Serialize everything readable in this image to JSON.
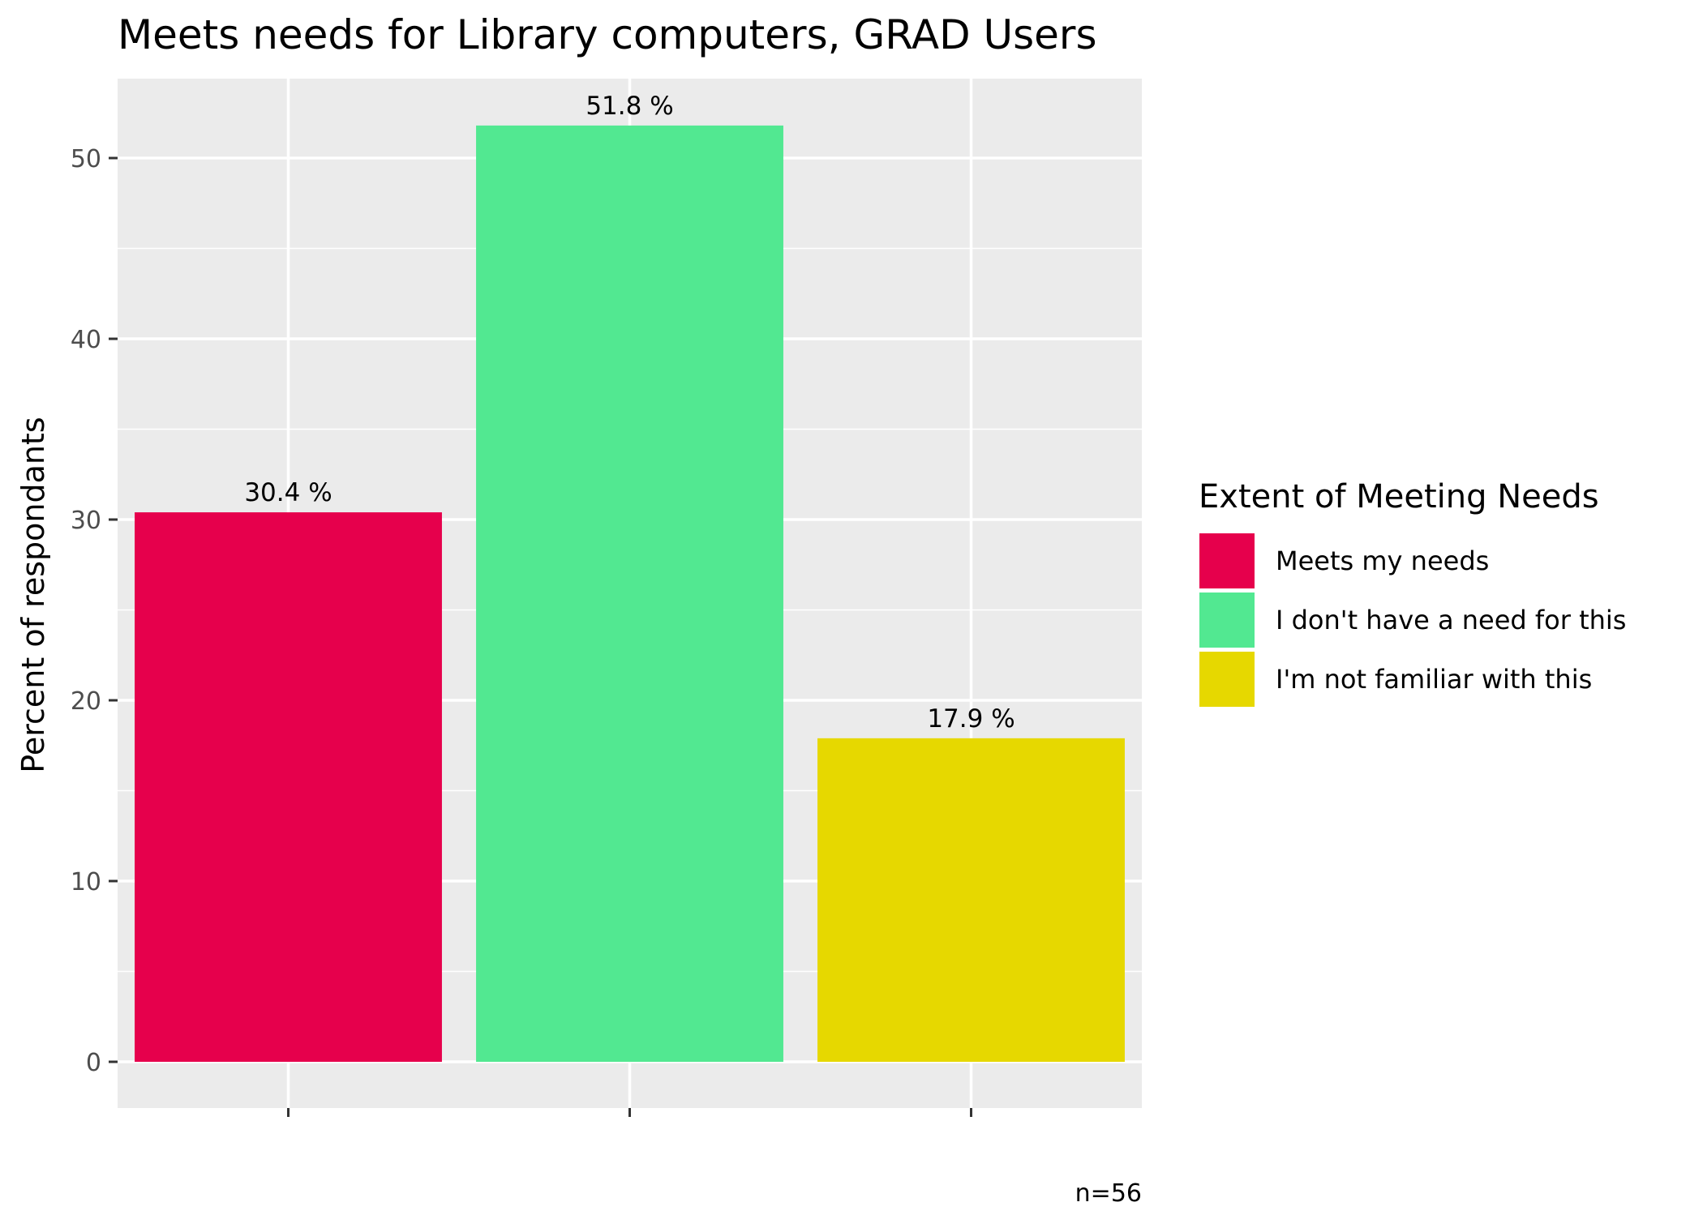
{
  "chart_data": {
    "type": "bar",
    "title": "Meets needs for Library computers, GRAD Users",
    "xlabel": "",
    "ylabel": "Percent of respondants",
    "ylim": [
      0,
      54
    ],
    "yticks": [
      0,
      10,
      20,
      30,
      40,
      50
    ],
    "grid": true,
    "categories": [
      "Meets my needs",
      "I don't have a need for this",
      "I'm not familiar with this"
    ],
    "values": [
      30.4,
      51.8,
      17.9
    ],
    "value_labels": [
      "30.4 %",
      "51.8 %",
      "17.9 %"
    ],
    "colors": [
      "#e6004c",
      "#52e891",
      "#e6d800"
    ],
    "legend": {
      "title": "Extent of Meeting Needs",
      "position": "right",
      "entries": [
        "Meets my needs",
        "I don't have a need for this",
        "I'm not familiar with this"
      ]
    },
    "caption": "n=56",
    "panel_background": "#ebebeb",
    "grid_color": "#ffffff"
  }
}
